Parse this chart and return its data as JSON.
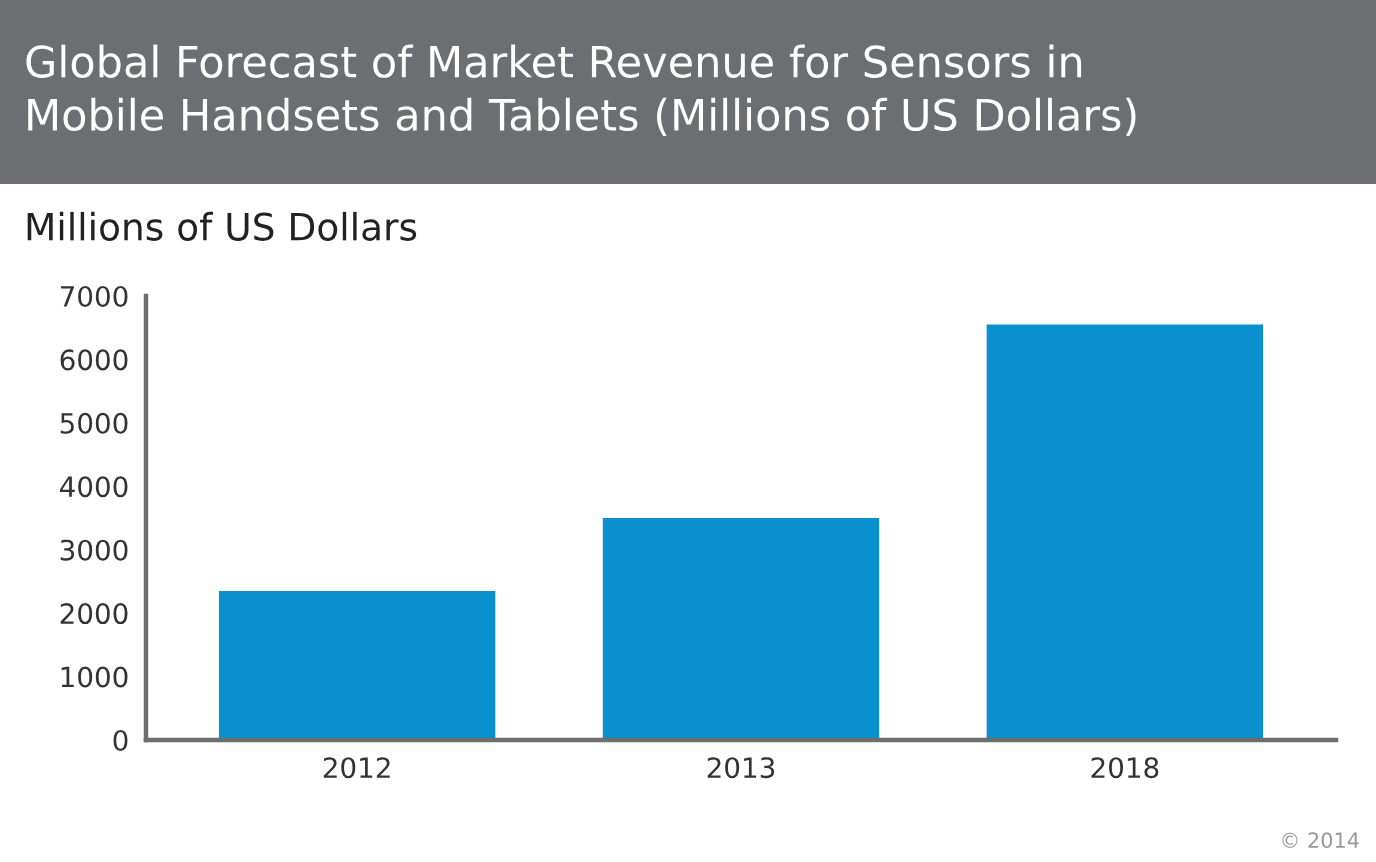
{
  "chart_data": {
    "type": "bar",
    "title": "Global Forecast of Market Revenue for Sensors in\nMobile Handsets and Tablets (Millions of US Dollars)",
    "ylabel": "Millions of US Dollars",
    "categories": [
      "2012",
      "2013",
      "2018"
    ],
    "values": [
      2350,
      3500,
      6550
    ],
    "color": "#0a8fcf",
    "ylim": [
      0,
      7000
    ],
    "yticks": [
      0,
      1000,
      2000,
      3000,
      4000,
      5000,
      6000,
      7000
    ],
    "grid": false,
    "annotations": [
      "© 2014"
    ]
  }
}
